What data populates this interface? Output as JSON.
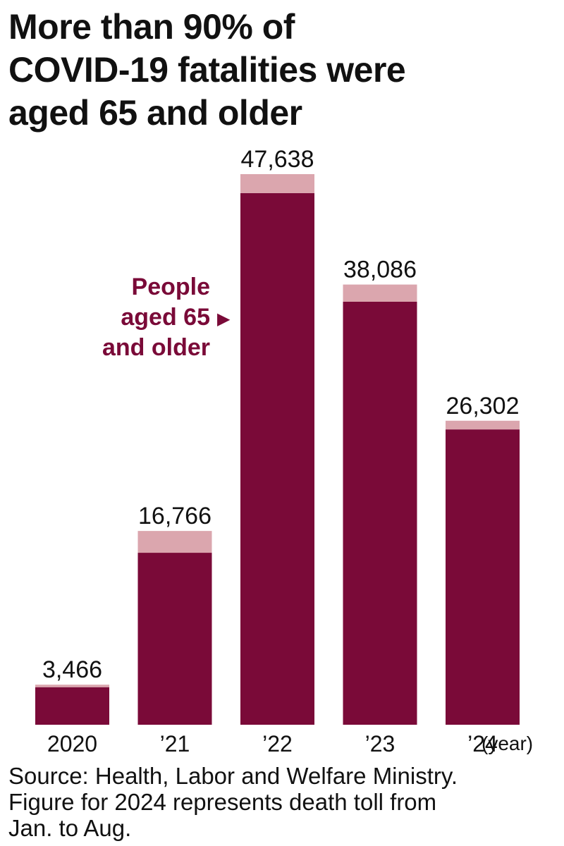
{
  "title_lines": [
    "More than 90% of",
    "COVID-19 fatalities were",
    "aged 65 and older"
  ],
  "annotation": {
    "lines": [
      "People",
      "aged 65",
      "and older"
    ],
    "arrow_glyph": "▶"
  },
  "unit_label": "(year)",
  "source_lines": [
    "Source: Health, Labor and Welfare Ministry.",
    "Figure for 2024 represents death toll from",
    "Jan. to Aug."
  ],
  "colors": {
    "aged_65_plus": "#7a0a38",
    "total_remainder": "#dba6ae",
    "text": "#111111",
    "annotation": "#7a0a38"
  },
  "chart_data": {
    "type": "bar",
    "stacked": true,
    "categories": [
      "2020",
      "’21",
      "’22",
      "’23",
      "’24"
    ],
    "totals": [
      3466,
      16766,
      47638,
      38086,
      26302
    ],
    "total_labels": [
      "3,466",
      "16,766",
      "47,638",
      "38,086",
      "26,302"
    ],
    "series": [
      {
        "name": "People aged 65 and older",
        "values": [
          3250,
          14880,
          46000,
          36600,
          25550
        ]
      },
      {
        "values": [
          216,
          1886,
          1638,
          1486,
          752
        ]
      }
    ],
    "ylim": [
      0,
      47638
    ],
    "grid": false,
    "legend": "none"
  }
}
